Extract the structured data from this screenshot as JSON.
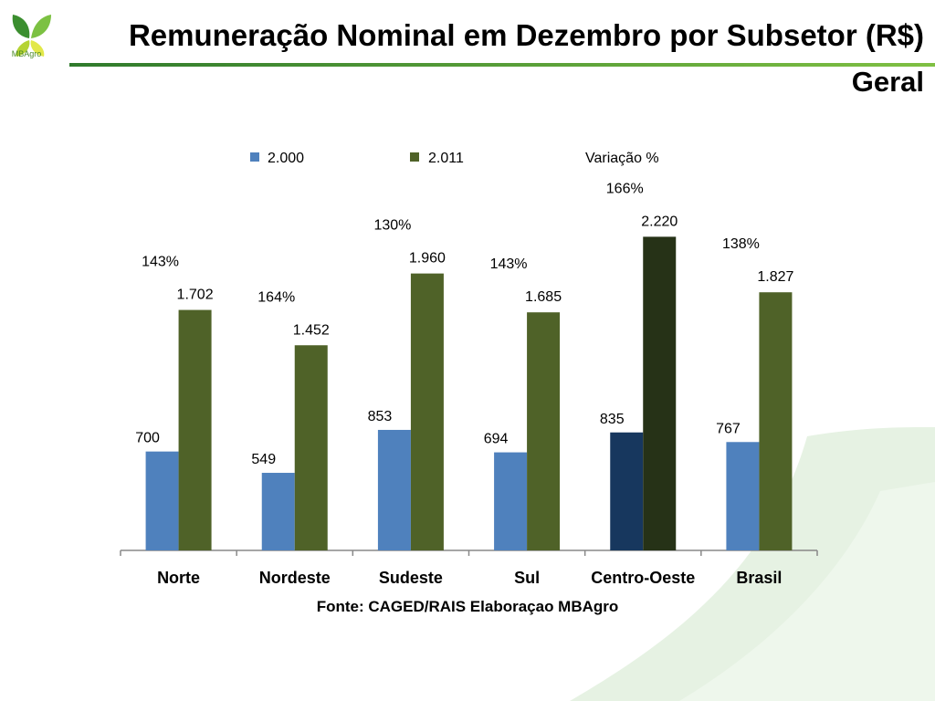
{
  "header": {
    "title": "Remuneração Nominal em Dezembro por Subsetor (R$)",
    "subtitle": "Geral",
    "logo_text": "MBAgro"
  },
  "footer": {
    "source": "Fonte: CAGED/RAIS Elaboraçao MBAgro"
  },
  "colors": {
    "series_2000": "#4f81bd",
    "series_2011": "#4f6228",
    "highlight_2000": "#17375e",
    "highlight_2011": "#263217",
    "title_rule": "#4c9a2a"
  },
  "chart_data": {
    "type": "bar",
    "categories": [
      "Norte",
      "Nordeste",
      "Sudeste",
      "Sul",
      "Centro-Oeste",
      "Brasil"
    ],
    "series": [
      {
        "name": "2.000",
        "values": [
          700,
          549,
          853,
          694,
          835,
          767
        ],
        "labels": [
          "700",
          "549",
          "853",
          "694",
          "835",
          "767"
        ]
      },
      {
        "name": "2.011",
        "values": [
          1702,
          1452,
          1960,
          1685,
          2220,
          1827
        ],
        "labels": [
          "1.702",
          "1.452",
          "1.960",
          "1.685",
          "2.220",
          "1.827"
        ]
      }
    ],
    "variation": {
      "name": "Variação %",
      "labels": [
        "143%",
        "164%",
        "130%",
        "143%",
        "166%",
        "138%"
      ]
    },
    "highlight_category": "Centro-Oeste",
    "legend_position": "top",
    "ylim": [
      0,
      2300
    ],
    "grid": false
  }
}
